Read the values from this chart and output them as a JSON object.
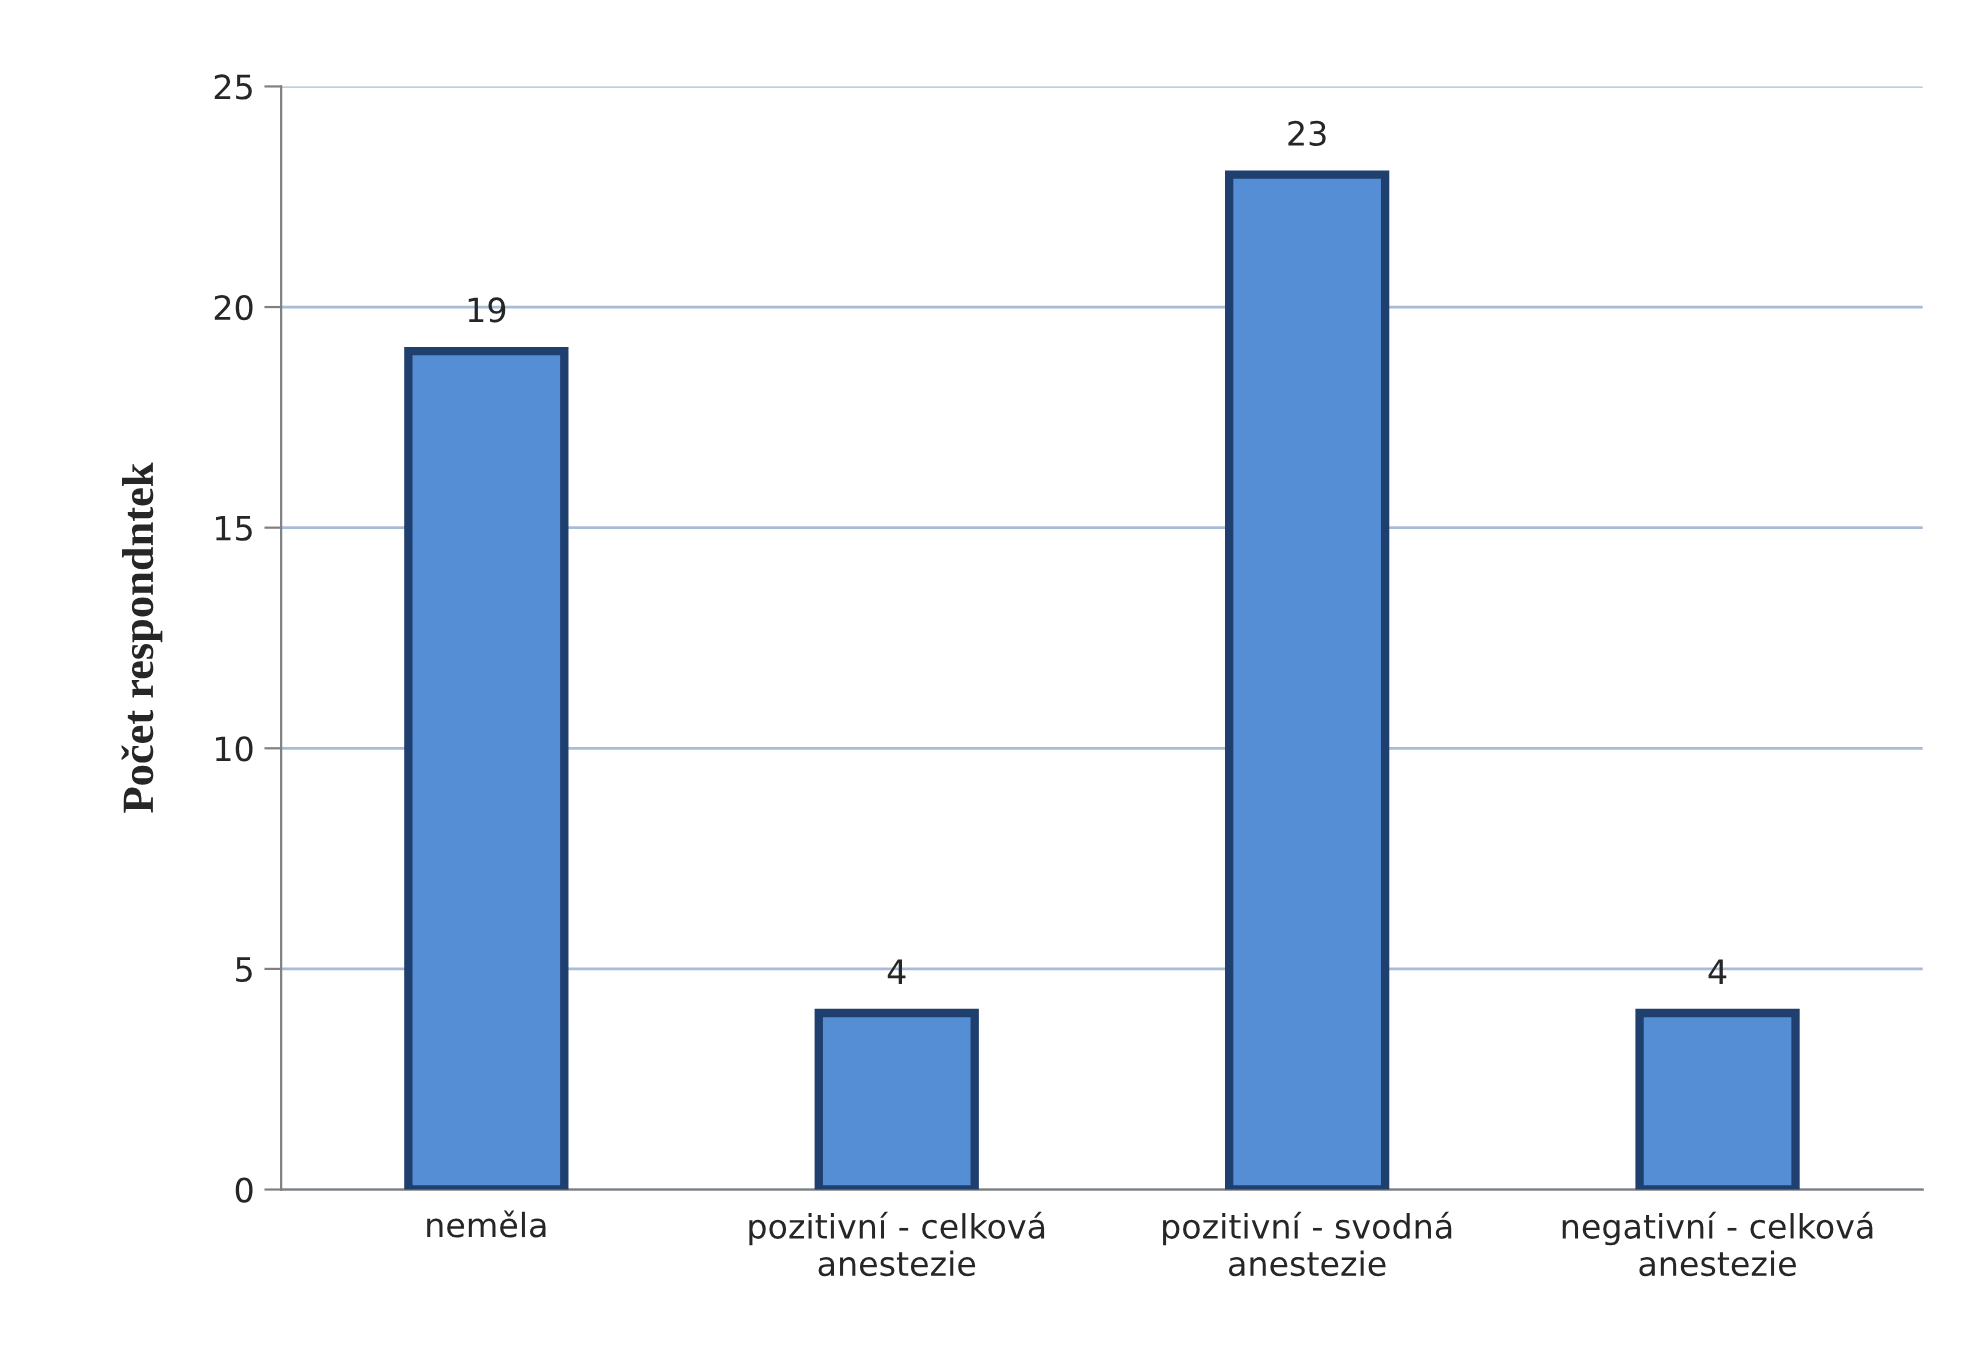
{
  "chart_data": {
    "type": "bar",
    "ylabel": "Počet respondntek",
    "categories": [
      "neměla",
      "pozitivní - celková\nanestezie",
      "pozitivní - svodná\nanestezie",
      "negativní - celková\nanestezie"
    ],
    "values": [
      19,
      4,
      23,
      4
    ],
    "color": "#558ed5",
    "ylim": [
      0,
      25
    ],
    "yticks": [
      0,
      5,
      10,
      15,
      20,
      25
    ],
    "grid": "y",
    "data_labels": true
  }
}
